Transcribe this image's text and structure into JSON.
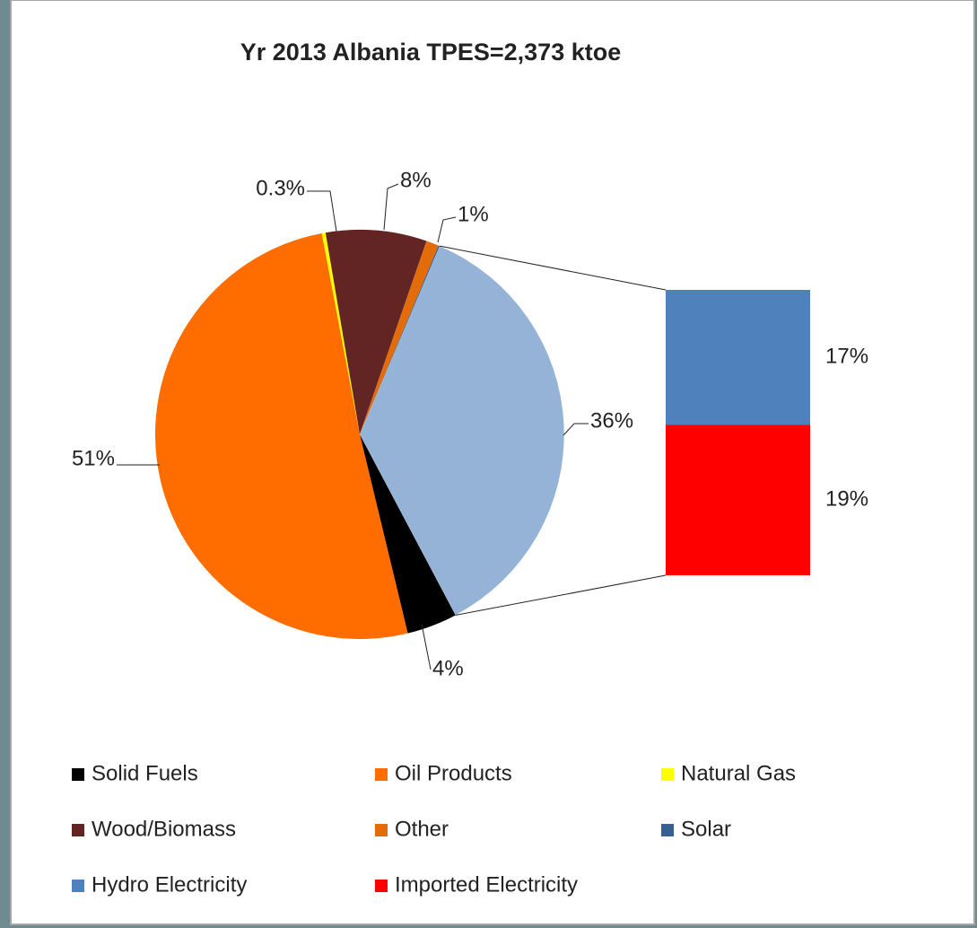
{
  "chart_data": {
    "type": "pie_of_bar",
    "title": "Yr 2013   Albania  TPES=2,373 ktoe",
    "categories": [
      "Solid Fuels",
      "Oil Products",
      "Natural Gas",
      "Wood/Biomass",
      "Other",
      "Solar"
    ],
    "values": [
      4,
      51,
      0.3,
      8,
      1,
      0.1
    ],
    "value_labels": [
      "4%",
      "51%",
      "0.3%",
      "8%",
      "1%",
      null
    ],
    "colors": [
      "#000000",
      "#ff6d00",
      "#ffff00",
      "#632523",
      "#e36c09",
      "#376092"
    ],
    "split_slice": {
      "value": 36,
      "value_label": "36%",
      "color": "#95b3d7"
    },
    "bar_categories": [
      "Hydro Electricity",
      "Imported Electricity"
    ],
    "bar_values": [
      17,
      19
    ],
    "bar_value_labels": [
      "17%",
      "19%"
    ],
    "bar_colors": [
      "#4f81bd",
      "#ff0000"
    ],
    "legend": "bottom"
  }
}
